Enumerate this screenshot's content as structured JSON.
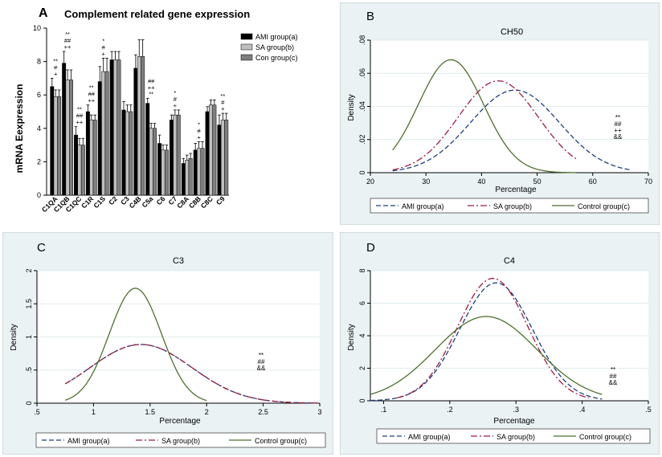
{
  "chart_data": [
    {
      "id": "A",
      "type": "bar",
      "panel_label": "A",
      "title": "Complement related gene expression",
      "ylabel": "mRNA Eexpression",
      "xlabel": "",
      "ylim": [
        0,
        10
      ],
      "yticks": [
        "0",
        "2",
        "4",
        "6",
        "8",
        "10"
      ],
      "categories": [
        "C1QA",
        "C1QB",
        "C1QC",
        "C1R",
        "C1S",
        "C2",
        "C3",
        "C4B",
        "C5a",
        "C6",
        "C7",
        "C8A",
        "C8B",
        "C8C",
        "C9"
      ],
      "series": [
        {
          "name": "AMI group(a)",
          "color": "#000000",
          "values": [
            6.5,
            7.9,
            3.6,
            5.0,
            6.8,
            8.1,
            5.1,
            7.6,
            5.5,
            3.1,
            4.5,
            1.9,
            2.7,
            5.0,
            4.2
          ],
          "errors": [
            0.5,
            0.7,
            0.5,
            0.4,
            0.9,
            0.5,
            0.5,
            0.8,
            0.3,
            0.5,
            0.3,
            0.3,
            0.4,
            0.3,
            0.6
          ]
        },
        {
          "name": "SA group(b)",
          "color": "#bfbfbf",
          "values": [
            5.9,
            6.9,
            3.0,
            4.5,
            7.4,
            8.1,
            5.0,
            8.3,
            4.0,
            2.7,
            4.8,
            2.1,
            2.8,
            5.4,
            4.5
          ],
          "errors": [
            0.4,
            0.6,
            0.4,
            0.3,
            0.8,
            0.5,
            0.4,
            1.0,
            0.3,
            0.3,
            0.3,
            0.3,
            0.4,
            0.3,
            0.4
          ]
        },
        {
          "name": "Con group(c)",
          "color": "#7f7f7f",
          "values": [
            5.9,
            6.9,
            3.0,
            4.5,
            7.4,
            8.1,
            5.0,
            8.3,
            4.0,
            2.7,
            4.8,
            2.2,
            2.8,
            5.4,
            4.5
          ],
          "errors": [
            0.4,
            0.6,
            0.4,
            0.3,
            0.8,
            0.5,
            0.4,
            1.0,
            0.3,
            0.3,
            0.3,
            0.3,
            0.4,
            0.3,
            0.4
          ]
        }
      ],
      "annotations": [
        {
          "category": "C1QA",
          "text": [
            "**",
            "#",
            "+"
          ]
        },
        {
          "category": "C1QB",
          "text": [
            "**",
            "##",
            "++"
          ]
        },
        {
          "category": "C1QC",
          "text": [
            "**",
            "##",
            "++"
          ]
        },
        {
          "category": "C1R",
          "text": [
            "**",
            "##",
            "++"
          ]
        },
        {
          "category": "C1S",
          "text": [
            "*",
            "#",
            "+"
          ]
        },
        {
          "category": "C5a",
          "text": [
            "##",
            "++",
            "**"
          ]
        },
        {
          "category": "C7",
          "text": [
            "*",
            "#",
            "+"
          ]
        },
        {
          "category": "C8B",
          "text": [
            "*",
            "#",
            "+"
          ]
        },
        {
          "category": "C9",
          "text": [
            "**",
            "#",
            "+"
          ]
        }
      ]
    },
    {
      "id": "B",
      "type": "line",
      "panel_label": "B",
      "title": "CH50",
      "xlabel": "Percentage",
      "ylabel": "Density",
      "xlim": [
        20,
        70
      ],
      "ylim": [
        0,
        0.08
      ],
      "xticks": [
        20,
        30,
        40,
        50,
        60,
        70
      ],
      "xtick_labels": [
        "20",
        "30",
        "40",
        "50",
        "60",
        "70"
      ],
      "yticks": [
        0,
        0.02,
        0.04,
        0.06,
        0.08
      ],
      "ytick_labels": [
        "0",
        ".02",
        ".04",
        ".06",
        ".08"
      ],
      "series": [
        {
          "name": "AMI group(a)",
          "color": "#1f3f7f",
          "dash": "6,3",
          "mean": 46,
          "sd": 8.0,
          "xmin": 24,
          "xmax": 67
        },
        {
          "name": "SA group(b)",
          "color": "#9b1f3f",
          "dash": "8,3,2,3",
          "mean": 43,
          "sd": 7.2,
          "xmin": 24,
          "xmax": 57
        },
        {
          "name": "Control group(c)",
          "color": "#4f6f2f",
          "dash": "",
          "mean": 34.5,
          "sd": 5.85,
          "xmin": 24,
          "xmax": 57
        }
      ],
      "annotation": [
        "**",
        "##",
        "++",
        "&&"
      ]
    },
    {
      "id": "C",
      "type": "line",
      "panel_label": "C",
      "title": "C3",
      "xlabel": "Percentage",
      "ylabel": "Density",
      "xlim": [
        0.5,
        3
      ],
      "ylim": [
        0,
        2
      ],
      "xticks": [
        0.5,
        1,
        1.5,
        2,
        2.5,
        3
      ],
      "xtick_labels": [
        ".5",
        "1",
        "1.5",
        "2",
        "2.5",
        "3"
      ],
      "yticks": [
        0,
        0.5,
        1,
        1.5,
        2
      ],
      "ytick_labels": [
        "0",
        ".5",
        "1",
        "1.5",
        "2"
      ],
      "series": [
        {
          "name": "AMI group(a)",
          "color": "#1f3f7f",
          "dash": "6,3",
          "mean": 1.42,
          "sd": 0.45,
          "xmin": 0.75,
          "xmax": 2.98
        },
        {
          "name": "SA group(b)",
          "color": "#9b1f3f",
          "dash": "8,3,2,3",
          "mean": 1.42,
          "sd": 0.45,
          "xmin": 0.75,
          "xmax": 2.98
        },
        {
          "name": "Control group(c)",
          "color": "#4f6f2f",
          "dash": "",
          "mean": 1.37,
          "sd": 0.23,
          "xmin": 0.75,
          "xmax": 2.0
        }
      ],
      "annotation": [
        "**",
        "##",
        "&&"
      ]
    },
    {
      "id": "D",
      "type": "line",
      "panel_label": "D",
      "title": "C4",
      "xlabel": "Percentage",
      "ylabel": "Density",
      "xlim": [
        0.08,
        0.5
      ],
      "ylim": [
        0,
        8
      ],
      "xticks": [
        0.1,
        0.2,
        0.3,
        0.4,
        0.5
      ],
      "xtick_labels": [
        ".1",
        ".2",
        ".3",
        ".4",
        ".5"
      ],
      "yticks": [
        0,
        2,
        4,
        6,
        8
      ],
      "ytick_labels": [
        "0",
        "2",
        "4",
        "6",
        "8"
      ],
      "series": [
        {
          "name": "AMI group(a)",
          "color": "#1f3f7f",
          "dash": "6,3",
          "mean": 0.27,
          "sd": 0.055,
          "xmin": 0.08,
          "xmax": 0.43
        },
        {
          "name": "SA group(b)",
          "color": "#9b1f3f",
          "dash": "8,3,2,3",
          "mean": 0.265,
          "sd": 0.053,
          "xmin": 0.12,
          "xmax": 0.41
        },
        {
          "name": "Control group(c)",
          "color": "#4f6f2f",
          "dash": "",
          "mean": 0.255,
          "sd": 0.077,
          "xmin": 0.08,
          "xmax": 0.43
        }
      ],
      "annotation": [
        "**",
        "##",
        "&&"
      ]
    }
  ]
}
